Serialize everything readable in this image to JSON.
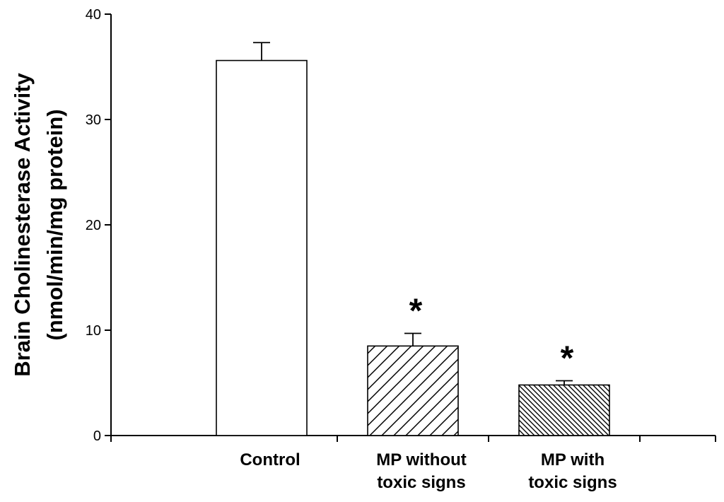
{
  "chart_data": {
    "type": "bar",
    "categories": [
      "Control",
      "MP without\ntoxic signs",
      "MP with\ntoxic signs"
    ],
    "values": [
      35.6,
      8.5,
      4.8
    ],
    "errors": [
      1.7,
      1.2,
      0.4
    ],
    "significance": [
      "",
      "*",
      "*"
    ],
    "fills": [
      "solid-white",
      "hatch-wide",
      "hatch-dense"
    ],
    "ylabel": "Brain Cholinesterase Activity\n(nmol/min/mg protein)",
    "xlabel": "",
    "title": "",
    "ylim": [
      0,
      40
    ],
    "yticks": [
      0,
      10,
      20,
      30,
      40
    ],
    "grid": false
  }
}
